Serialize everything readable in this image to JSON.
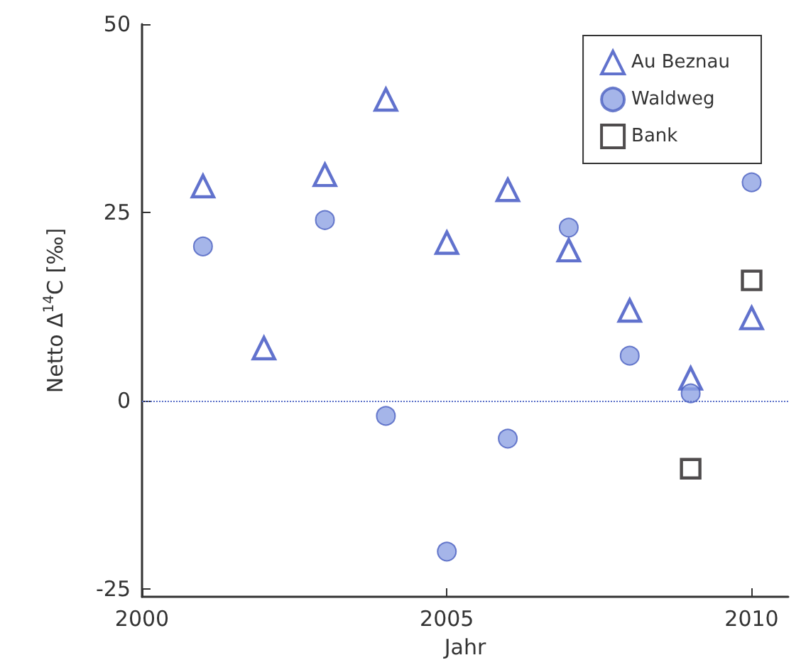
{
  "chart_data": {
    "type": "scatter",
    "xlabel": "Jahr",
    "ylabel": "Netto Δ$^{14}$C [‰]",
    "xlim": [
      2000,
      2010.6
    ],
    "xticks": [
      2000,
      2005,
      2010
    ],
    "ylim": [
      -26,
      50
    ],
    "yticks": [
      -25,
      0,
      25,
      50
    ],
    "grid": false,
    "legend": "top right",
    "ref_lines": [
      {
        "axis": "y",
        "value": 0,
        "color": "#5a6fc8",
        "line_style": "dotted"
      }
    ],
    "series": [
      {
        "name": "Au Beznau",
        "marker": "triangle",
        "color": "#3a4fc0",
        "x": [
          2001,
          2002,
          2003,
          2004,
          2005,
          2006,
          2007,
          2008,
          2009,
          2010
        ],
        "values": [
          28.5,
          7,
          30,
          40,
          21,
          28,
          20,
          12,
          3,
          11
        ]
      },
      {
        "name": "Waldweg",
        "marker": "circle",
        "color": "#8ea3e3",
        "x": [
          2001,
          2003,
          2004,
          2005,
          2006,
          2007,
          2008,
          2009,
          2010
        ],
        "values": [
          20.5,
          24,
          -2,
          -20,
          -5,
          23,
          6,
          1,
          29
        ]
      },
      {
        "name": "Bank",
        "marker": "square",
        "color": "#231f20",
        "x": [
          2009,
          2010
        ],
        "values": [
          -9,
          16
        ]
      }
    ]
  }
}
